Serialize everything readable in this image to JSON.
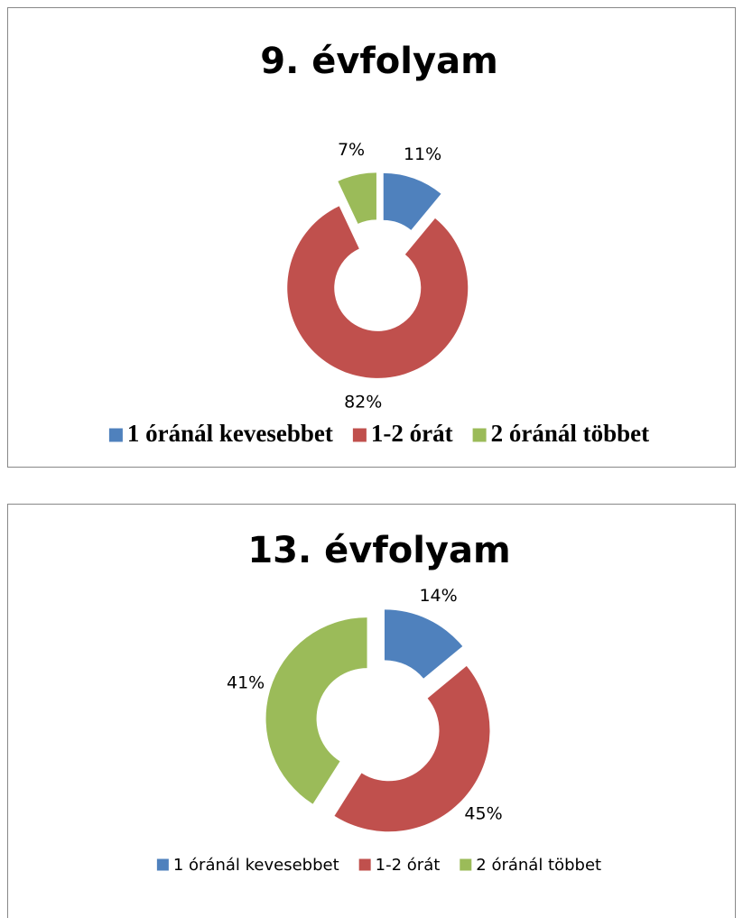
{
  "chart_data": [
    {
      "type": "doughnut",
      "title": "9. évfolyam",
      "categories": [
        "1 óránál kevesebbet",
        "1-2 órát",
        "2 óránál többet"
      ],
      "values": [
        11,
        82,
        7
      ],
      "value_labels": [
        "11%",
        "82%",
        "7%"
      ],
      "colors": [
        "#4f81bd",
        "#c0504d",
        "#9bbb59"
      ],
      "legend": "bottom"
    },
    {
      "type": "doughnut",
      "title": "13. évfolyam",
      "categories": [
        "1 óránál kevesebbet",
        "1-2 órát",
        "2 óránál többet"
      ],
      "values": [
        14,
        45,
        41
      ],
      "value_labels": [
        "14%",
        "45%",
        "41%"
      ],
      "colors": [
        "#4f81bd",
        "#c0504d",
        "#9bbb59"
      ],
      "legend": "bottom"
    }
  ]
}
